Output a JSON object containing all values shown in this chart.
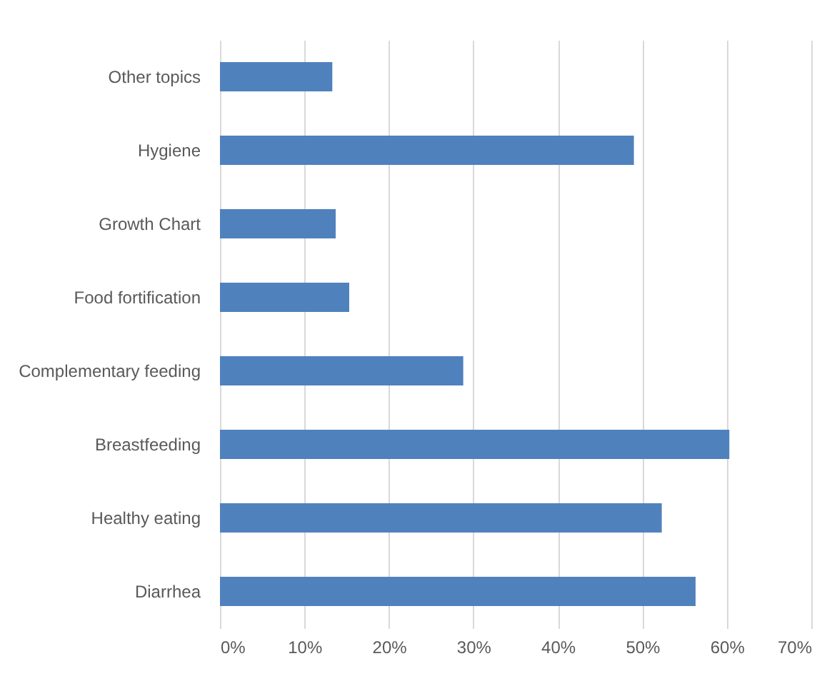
{
  "chart_data": {
    "type": "bar",
    "orientation": "horizontal",
    "categories": [
      "Other topics",
      "Hygiene",
      "Growth Chart",
      "Food fortification",
      "Complementary feeding",
      "Breastfeeding",
      "Healthy eating",
      "Diarrhea"
    ],
    "values": [
      13.3,
      49,
      13.7,
      15.3,
      28.8,
      60.3,
      52.3,
      56.3
    ],
    "color": "#4f81bd",
    "xlim": [
      0,
      70
    ],
    "xticks": [
      {
        "value": 0,
        "label": "0%"
      },
      {
        "value": 10,
        "label": "10%"
      },
      {
        "value": 20,
        "label": "20%"
      },
      {
        "value": 30,
        "label": "30%"
      },
      {
        "value": 40,
        "label": "40%"
      },
      {
        "value": 50,
        "label": "50%"
      },
      {
        "value": 60,
        "label": "60%"
      },
      {
        "value": 70,
        "label": "70%"
      }
    ],
    "grid": "x"
  }
}
